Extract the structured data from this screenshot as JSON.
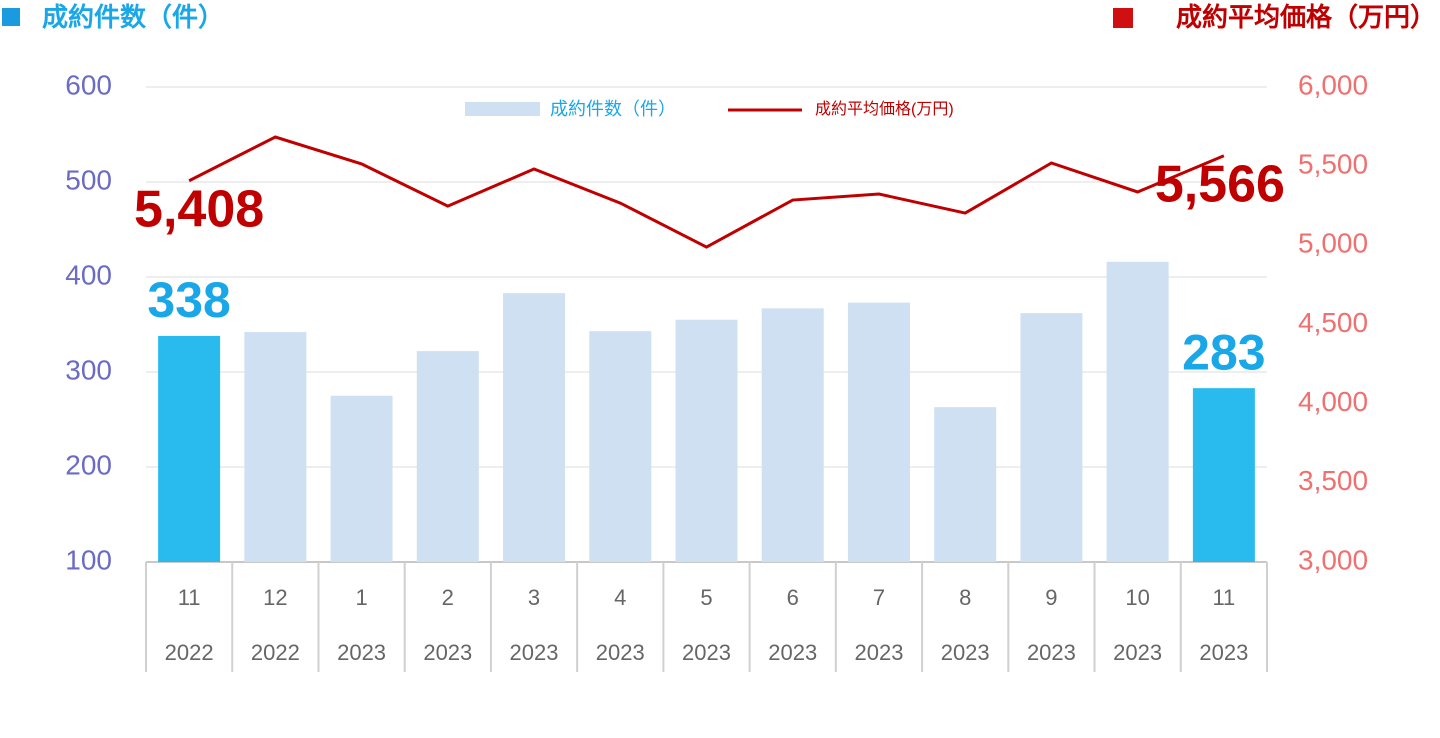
{
  "chart_data": {
    "type": "bar_line",
    "y_label": "成約件数（件）",
    "y2_label": "成約平均価格（万円）",
    "categories": [
      "11",
      "12",
      "1",
      "2",
      "3",
      "4",
      "5",
      "6",
      "7",
      "8",
      "9",
      "10",
      "11"
    ],
    "category_years": [
      "2022",
      "2022",
      "2023",
      "2023",
      "2023",
      "2023",
      "2023",
      "2023",
      "2023",
      "2023",
      "2023",
      "2023",
      "2023"
    ],
    "series": [
      {
        "name": "成約件数（件）",
        "type": "bar",
        "color": "#cfe0f3",
        "colors": [
          "#29bbee",
          "#cfe0f3",
          "#cfe0f3",
          "#cfe0f3",
          "#cfe0f3",
          "#cfe0f3",
          "#cfe0f3",
          "#cfe0f3",
          "#cfe0f3",
          "#cfe0f3",
          "#cfe0f3",
          "#cfe0f3",
          "#29bbee"
        ],
        "values": [
          338,
          342,
          275,
          322,
          383,
          343,
          355,
          367,
          373,
          263,
          362,
          416,
          283
        ],
        "value_labels": [
          "338",
          null,
          null,
          null,
          null,
          null,
          null,
          null,
          null,
          null,
          null,
          null,
          "283"
        ],
        "label_color": "#1aa7e8"
      },
      {
        "name": "成約平均価格(万円)",
        "type": "line",
        "axis": "y2",
        "color": "#c00000",
        "values": [
          5408,
          5684,
          5514,
          5248,
          5482,
          5267,
          4989,
          5286,
          5324,
          5204,
          5520,
          5337,
          5566
        ],
        "value_labels": [
          "5,408",
          null,
          null,
          null,
          null,
          null,
          null,
          null,
          null,
          null,
          null,
          null,
          "5,566"
        ],
        "label_color": "#c00000"
      }
    ],
    "ylim": [
      100,
      600
    ],
    "yticks": [
      100,
      200,
      300,
      400,
      500,
      600
    ],
    "y_color": "#6b6bc6",
    "y2lim": [
      3000,
      6000
    ],
    "y2ticks": [
      {
        "value": 3000,
        "label": "3,000"
      },
      {
        "value": 3500,
        "label": "3,500"
      },
      {
        "value": 4000,
        "label": "4,000"
      },
      {
        "value": 4500,
        "label": "4,500"
      },
      {
        "value": 5000,
        "label": "5,000"
      },
      {
        "value": 5500,
        "label": "5,500"
      },
      {
        "value": 6000,
        "label": "6,000"
      }
    ],
    "y2_color": "#f07070",
    "grid": true
  }
}
